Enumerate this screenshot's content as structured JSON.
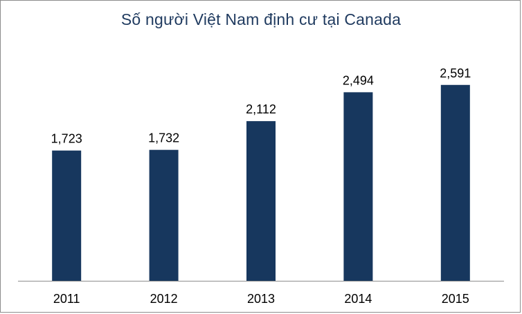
{
  "chart_data": {
    "type": "bar",
    "title": "Số người Việt Nam định cư tại Canada",
    "categories": [
      "2011",
      "2012",
      "2013",
      "2014",
      "2015"
    ],
    "values": [
      1723,
      1732,
      2112,
      2494,
      2591
    ],
    "value_labels": [
      "1,723",
      "1,732",
      "2,112",
      "2,494",
      "2,591"
    ],
    "xlabel": "",
    "ylabel": "",
    "ylim": [
      0,
      2900
    ],
    "grid": false,
    "legend": "none",
    "bar_color": "#17375e",
    "title_color": "#1f3a5f"
  }
}
